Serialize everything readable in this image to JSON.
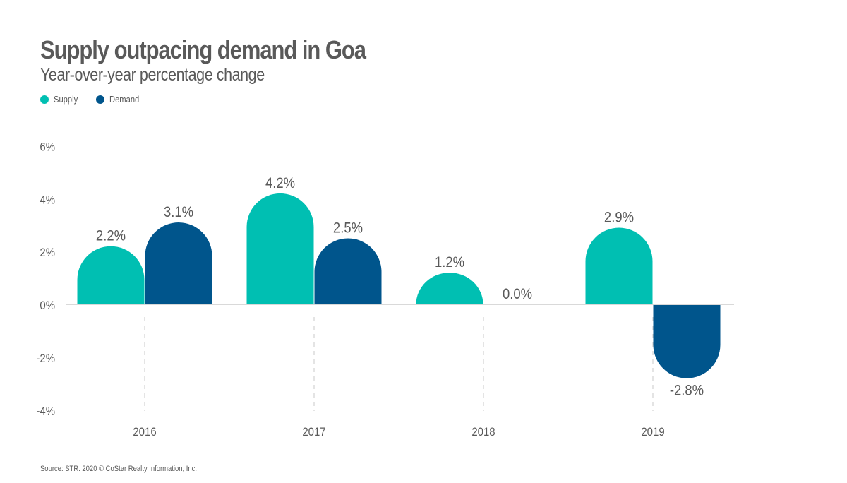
{
  "header": {
    "title": "Supply outpacing demand in Goa",
    "subtitle": "Year-over-year percentage change"
  },
  "legend": {
    "items": [
      {
        "label": "Supply",
        "color": "#00bfb2"
      },
      {
        "label": "Demand",
        "color": "#00558c"
      }
    ]
  },
  "footer": {
    "source": "Source: STR. 2020 © CoStar Realty Information, Inc."
  },
  "chart_data": {
    "type": "bar",
    "title": "Supply outpacing demand in Goa",
    "subtitle": "Year-over-year percentage change",
    "xlabel": "",
    "ylabel": "",
    "categories": [
      "2016",
      "2017",
      "2018",
      "2019"
    ],
    "series": [
      {
        "name": "Supply",
        "color": "#00bfb2",
        "values": [
          2.2,
          4.2,
          1.2,
          2.9
        ],
        "labels": [
          "2.2%",
          "4.2%",
          "1.2%",
          "2.9%"
        ]
      },
      {
        "name": "Demand",
        "color": "#00558c",
        "values": [
          3.1,
          2.5,
          0.0,
          -2.8
        ],
        "labels": [
          "3.1%",
          "2.5%",
          "0.0%",
          "-2.8%"
        ]
      }
    ],
    "ylim": [
      -4,
      6
    ],
    "yticks": [
      6,
      4,
      2,
      0,
      -2,
      -4
    ],
    "ytick_labels": [
      "6%",
      "4%",
      "2%",
      "0%",
      "-2%",
      "-4%"
    ],
    "grid": false,
    "legend_position": "top-left",
    "bar_style": "rounded-end"
  }
}
